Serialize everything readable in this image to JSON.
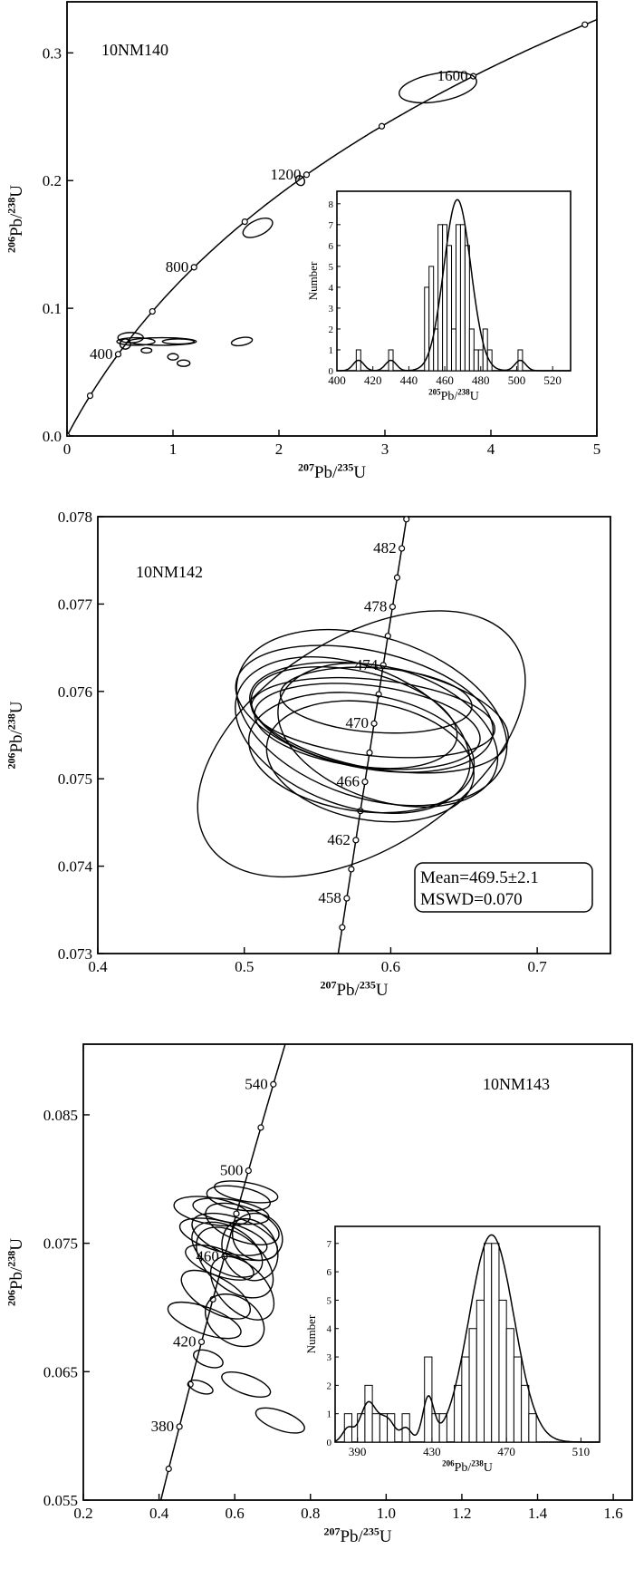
{
  "chart_data": [
    {
      "type": "scatter",
      "title": "10NM140",
      "xlabel": {
        "sup": "207",
        "base": "Pb/",
        "sup2": "235",
        "tail": "U"
      },
      "ylabel": {
        "sup": "206",
        "base": "Pb/",
        "sup2": "238",
        "tail": "U"
      },
      "xlim": [
        0,
        5
      ],
      "ylim": [
        0,
        0.34
      ],
      "xticks": [
        "0",
        "1",
        "2",
        "3",
        "4",
        "5"
      ],
      "yticks": [
        "0.0",
        "0.1",
        "0.2",
        "0.3"
      ],
      "concordia_labels": [
        {
          "text": "400",
          "age": 400
        },
        {
          "text": "800",
          "age": 800
        },
        {
          "text": "1200",
          "age": 1200
        },
        {
          "text": "1600",
          "age": 1600
        }
      ],
      "ellipses": [
        {
          "x": 0.6,
          "y": 0.077,
          "rx": 0.12,
          "ry": 0.004,
          "rot": 0
        },
        {
          "x": 0.65,
          "y": 0.074,
          "rx": 0.18,
          "ry": 0.003,
          "rot": 0
        },
        {
          "x": 0.9,
          "y": 0.074,
          "rx": 0.32,
          "ry": 0.003,
          "rot": 0
        },
        {
          "x": 1.05,
          "y": 0.074,
          "rx": 0.15,
          "ry": 0.002,
          "rot": 0
        },
        {
          "x": 0.55,
          "y": 0.072,
          "rx": 0.05,
          "ry": 0.004,
          "rot": 0
        },
        {
          "x": 0.75,
          "y": 0.067,
          "rx": 0.05,
          "ry": 0.002,
          "rot": 0
        },
        {
          "x": 1.0,
          "y": 0.062,
          "rx": 0.05,
          "ry": 0.0025,
          "rot": 0
        },
        {
          "x": 1.1,
          "y": 0.057,
          "rx": 0.06,
          "ry": 0.0025,
          "rot": 0
        },
        {
          "x": 1.65,
          "y": 0.074,
          "rx": 0.1,
          "ry": 0.003,
          "rot": -10
        },
        {
          "x": 1.8,
          "y": 0.163,
          "rx": 0.15,
          "ry": 0.006,
          "rot": -25
        },
        {
          "x": 2.2,
          "y": 0.2,
          "rx": 0.04,
          "ry": 0.004,
          "rot": -30
        },
        {
          "x": 3.5,
          "y": 0.273,
          "rx": 0.37,
          "ry": 0.011,
          "rot": -10
        }
      ],
      "inset": {
        "type": "bar",
        "xlabel": {
          "sup": "205",
          "base": "Pb/",
          "sup2": "238",
          "tail": "U"
        },
        "ylabel": "Number",
        "xlim": [
          400,
          530
        ],
        "ylim": [
          0,
          8.6
        ],
        "xticks": [
          "400",
          "420",
          "440",
          "460",
          "480",
          "500",
          "520"
        ],
        "yticks": [
          "0",
          "1",
          "2",
          "3",
          "4",
          "5",
          "6",
          "7",
          "8"
        ],
        "bins": [
          412,
          430,
          450,
          452.5,
          455,
          457.5,
          460,
          462.5,
          465,
          467.5,
          470,
          472.5,
          475,
          477.5,
          480,
          482.5,
          485,
          502
        ],
        "values": [
          1,
          1,
          4,
          5,
          2,
          7,
          7,
          6,
          2,
          7,
          7,
          6,
          2,
          1,
          1,
          2,
          1,
          1
        ],
        "bin_width": 2.5,
        "curve_peak": 8.2,
        "curve_mean": 467,
        "curve_sd": 7.5
      }
    },
    {
      "type": "scatter",
      "title": "10NM142",
      "xlabel": {
        "sup": "207",
        "base": "Pb/",
        "sup2": "235",
        "tail": "U"
      },
      "ylabel": {
        "sup": "206",
        "base": "Pb/",
        "sup2": "238",
        "tail": "U"
      },
      "xlim": [
        0.4,
        0.75
      ],
      "ylim": [
        0.073,
        0.078
      ],
      "xticks": [
        "0.4",
        "0.5",
        "0.6",
        "0.7"
      ],
      "yticks": [
        "0.073",
        "0.074",
        "0.075",
        "0.076",
        "0.077",
        "0.078"
      ],
      "concordia_labels": [
        {
          "text": "458",
          "age": 458
        },
        {
          "text": "462",
          "age": 462
        },
        {
          "text": "466",
          "age": 466
        },
        {
          "text": "470",
          "age": 470
        },
        {
          "text": "474",
          "age": 474
        },
        {
          "text": "478",
          "age": 478
        },
        {
          "text": "482",
          "age": 482
        }
      ],
      "ellipses": [
        {
          "x": 0.58,
          "y": 0.0754,
          "rx": 0.125,
          "ry": 0.0012,
          "rot": -33
        },
        {
          "x": 0.574,
          "y": 0.0755,
          "rx": 0.048,
          "ry": 0.0014,
          "rot": -70
        },
        {
          "x": 0.587,
          "y": 0.0757,
          "rx": 0.055,
          "ry": 0.0016,
          "rot": -72
        },
        {
          "x": 0.582,
          "y": 0.0758,
          "rx": 0.04,
          "ry": 0.0015,
          "rot": -78
        },
        {
          "x": 0.592,
          "y": 0.0757,
          "rx": 0.035,
          "ry": 0.0015,
          "rot": -80
        },
        {
          "x": 0.588,
          "y": 0.0757,
          "rx": 0.026,
          "ry": 0.0014,
          "rot": -84
        },
        {
          "x": 0.584,
          "y": 0.0756,
          "rx": 0.028,
          "ry": 0.0013,
          "rot": -83
        },
        {
          "x": 0.58,
          "y": 0.0753,
          "rx": 0.04,
          "ry": 0.0013,
          "rot": -82
        },
        {
          "x": 0.598,
          "y": 0.0755,
          "rx": 0.045,
          "ry": 0.0013,
          "rot": -72
        },
        {
          "x": 0.586,
          "y": 0.0752,
          "rx": 0.04,
          "ry": 0.0012,
          "rot": -80
        },
        {
          "x": 0.59,
          "y": 0.0759,
          "rx": 0.022,
          "ry": 0.0011,
          "rot": -86
        },
        {
          "x": 0.575,
          "y": 0.0757,
          "rx": 0.032,
          "ry": 0.0012,
          "rot": -78
        }
      ],
      "mean_box": {
        "mean": "Mean=469.5±2.1",
        "mswd": "MSWD=0.070"
      }
    },
    {
      "type": "scatter",
      "title": "10NM143",
      "xlabel": {
        "sup": "207",
        "base": "Pb/",
        "sup2": "235",
        "tail": "U"
      },
      "ylabel": {
        "sup": "206",
        "base": "Pb/",
        "sup2": "238",
        "tail": "U"
      },
      "xlim": [
        0.2,
        1.65
      ],
      "ylim": [
        0.055,
        0.0905
      ],
      "xticks": [
        "0.2",
        "0.4",
        "0.6",
        "0.8",
        "1.0",
        "1.2",
        "1.4",
        "1.6"
      ],
      "yticks": [
        "0.055",
        "0.065",
        "0.075",
        "0.085"
      ],
      "concordia_labels": [
        {
          "text": "380",
          "age": 380
        },
        {
          "text": "420",
          "age": 420
        },
        {
          "text": "460",
          "age": 460
        },
        {
          "text": "500",
          "age": 500
        },
        {
          "text": "540",
          "age": 540
        }
      ],
      "ellipses": [
        {
          "x": 0.6,
          "y": 0.0755,
          "rx": 0.05,
          "ry": 0.0035,
          "rot": -70
        },
        {
          "x": 0.62,
          "y": 0.0765,
          "rx": 0.045,
          "ry": 0.003,
          "rot": -70
        },
        {
          "x": 0.58,
          "y": 0.0745,
          "rx": 0.06,
          "ry": 0.003,
          "rot": -60
        },
        {
          "x": 0.6,
          "y": 0.0735,
          "rx": 0.07,
          "ry": 0.0035,
          "rot": -50
        },
        {
          "x": 0.64,
          "y": 0.0745,
          "rx": 0.07,
          "ry": 0.0025,
          "rot": -30
        },
        {
          "x": 0.66,
          "y": 0.0755,
          "rx": 0.06,
          "ry": 0.002,
          "rot": -60
        },
        {
          "x": 0.55,
          "y": 0.071,
          "rx": 0.045,
          "ry": 0.003,
          "rot": -60
        },
        {
          "x": 0.59,
          "y": 0.0775,
          "rx": 0.03,
          "ry": 0.003,
          "rot": -80
        },
        {
          "x": 0.61,
          "y": 0.0785,
          "rx": 0.03,
          "ry": 0.0025,
          "rot": -80
        },
        {
          "x": 0.63,
          "y": 0.079,
          "rx": 0.025,
          "ry": 0.0025,
          "rot": -80
        },
        {
          "x": 0.57,
          "y": 0.0755,
          "rx": 0.04,
          "ry": 0.0035,
          "rot": -75
        },
        {
          "x": 0.52,
          "y": 0.069,
          "rx": 0.035,
          "ry": 0.003,
          "rot": -70
        },
        {
          "x": 0.6,
          "y": 0.069,
          "rx": 0.06,
          "ry": 0.0025,
          "rot": -55
        },
        {
          "x": 0.62,
          "y": 0.0715,
          "rx": 0.06,
          "ry": 0.003,
          "rot": -45
        },
        {
          "x": 0.54,
          "y": 0.0775,
          "rx": 0.035,
          "ry": 0.003,
          "rot": -80
        },
        {
          "x": 0.56,
          "y": 0.0735,
          "rx": 0.035,
          "ry": 0.0028,
          "rot": -70
        },
        {
          "x": 0.63,
          "y": 0.064,
          "rx": 0.025,
          "ry": 0.002,
          "rot": -70
        },
        {
          "x": 0.72,
          "y": 0.0612,
          "rx": 0.025,
          "ry": 0.002,
          "rot": -70
        },
        {
          "x": 0.51,
          "y": 0.0638,
          "rx": 0.015,
          "ry": 0.001,
          "rot": -70
        },
        {
          "x": 0.53,
          "y": 0.066,
          "rx": 0.02,
          "ry": 0.0012,
          "rot": -70
        }
      ],
      "inset": {
        "type": "bar",
        "xlabel": {
          "sup": "206",
          "base": "Pb/",
          "sup2": "238",
          "tail": "U"
        },
        "ylabel": "Number",
        "xlim": [
          378,
          520
        ],
        "ylim": [
          0,
          7.6
        ],
        "xticks": [
          "390",
          "430",
          "470",
          "510"
        ],
        "yticks": [
          "0",
          "1",
          "2",
          "3",
          "4",
          "5",
          "6",
          "7"
        ],
        "bins": [
          385,
          392,
          396,
          400,
          404,
          408,
          416,
          428,
          432,
          436,
          444,
          448,
          452,
          456,
          460,
          464,
          468,
          472,
          476,
          480,
          484
        ],
        "values": [
          1,
          1,
          2,
          1,
          1,
          1,
          1,
          3,
          1,
          1,
          2,
          3,
          4,
          5,
          7,
          7,
          5,
          4,
          3,
          2,
          1
        ],
        "bin_width": 4,
        "curve_peak": 7.3,
        "curve_mean": 462,
        "curve_sd": 12
      }
    }
  ]
}
